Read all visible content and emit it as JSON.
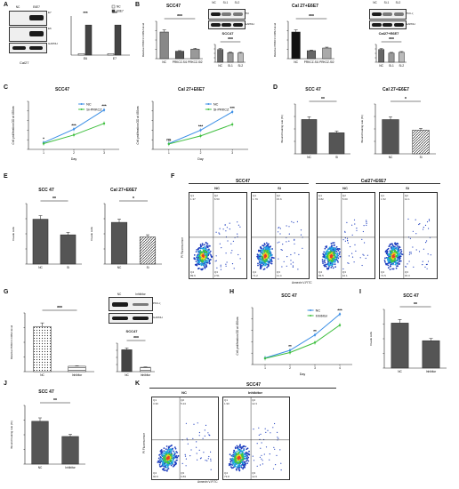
{
  "panel_letters": [
    "A",
    "B",
    "C",
    "D",
    "E",
    "F",
    "G",
    "H",
    "I",
    "J",
    "K"
  ],
  "A": {
    "lanes": [
      "NC",
      "E6E7"
    ],
    "rows": [
      "E7",
      "E6",
      "GAPDH"
    ],
    "cell_line": "Cal27",
    "chart_data": {
      "type": "bar",
      "categories": [
        "E6",
        "E7"
      ],
      "series": [
        {
          "name": "NC",
          "values": [
            0.05,
            0.05
          ]
        },
        {
          "name": "E6E7",
          "values": [
            1.0,
            1.0
          ]
        }
      ],
      "legend": [
        "NC",
        "E6E7"
      ],
      "sig": [
        "***",
        "***"
      ]
    }
  },
  "B": {
    "title1": "SCC47",
    "title2": "Cal 27+E6E7",
    "chart1": {
      "type": "bar",
      "categories": [
        "NC",
        "PRKCZ-Si1",
        "PRKCZ-Si2"
      ],
      "values": [
        1.0,
        0.28,
        0.36
      ],
      "ylabel": "Relative PRKCZ mRNA level",
      "ylim": [
        0,
        1.4
      ]
    },
    "chart2": {
      "type": "bar",
      "categories": [
        "NC",
        "PRKCZ-Si1",
        "PRKCZ-Si2"
      ],
      "values": [
        1.0,
        0.3,
        0.4
      ],
      "ylabel": "Relative PRKCZ mRNA level",
      "ylim": [
        0,
        1.4
      ]
    },
    "blot1": {
      "lanes": [
        "NC",
        "Si-1",
        "Si-2"
      ],
      "rows": [
        "PKI",
        "GAPDH"
      ],
      "cell": "SCC47"
    },
    "blot2": {
      "lanes": [
        "NC",
        "Si-1",
        "Si-2"
      ],
      "rows": [
        "PKC-ζ",
        "GAPDH"
      ],
      "cell": "Cal27+E6E7"
    },
    "small1": {
      "type": "bar",
      "categories": [
        "NC",
        "Si-1",
        "Si-2"
      ],
      "values": [
        1.0,
        0.75,
        0.72
      ]
    },
    "small2": {
      "type": "bar",
      "categories": [
        "NC",
        "Si-1",
        "Si-2"
      ],
      "values": [
        1.0,
        0.72,
        0.78
      ]
    },
    "sig": "***"
  },
  "C": {
    "title1": "SCC47",
    "title2": "Cal 27+E6E7",
    "chart1": {
      "type": "line",
      "x": [
        1,
        2,
        3
      ],
      "series": [
        {
          "name": "NC",
          "values": [
            0.35,
            1.05,
            2.05
          ]
        },
        {
          "name": "Si-PRKCZ",
          "values": [
            0.3,
            0.75,
            1.35
          ]
        }
      ],
      "xlabel": "Day",
      "ylabel": "Cell proliferation OD at 450nm"
    },
    "chart2": {
      "type": "line",
      "x": [
        1,
        2,
        3
      ],
      "series": [
        {
          "name": "NC",
          "values": [
            0.3,
            1.0,
            1.95
          ]
        },
        {
          "name": "Si-PRKCZ",
          "values": [
            0.28,
            0.7,
            1.3
          ]
        }
      ],
      "xlabel": "Day",
      "ylabel": "Cell proliferation OD at 450nm"
    },
    "legend": [
      "NC",
      "Si-PRKCZ"
    ],
    "sigs1": [
      "*",
      "***",
      "***"
    ],
    "sigs2": [
      "ns",
      "***",
      "***"
    ]
  },
  "D": {
    "title1": "SCC 47",
    "title2": "Cal 27+E6E7",
    "chart1": {
      "type": "bar",
      "categories": [
        "NC",
        "Si"
      ],
      "values": [
        62,
        38
      ],
      "ylabel": "Wound healing rate (%)"
    },
    "chart2": {
      "type": "bar",
      "categories": [
        "NC",
        "Si"
      ],
      "values": [
        55,
        38
      ],
      "ylabel": "Wound healing rate (%)"
    },
    "sig1": "**",
    "sig2": "*"
  },
  "E": {
    "title1": "SCC 47",
    "title2": "Cal 27+E6E7",
    "chart1": {
      "type": "bar",
      "categories": [
        "NC",
        "Si"
      ],
      "values": [
        230,
        150
      ],
      "ylabel": "Invade cells"
    },
    "chart2": {
      "type": "bar",
      "categories": [
        "NC",
        "Si"
      ],
      "values": [
        200,
        130
      ],
      "ylabel": "Invade cells"
    },
    "sig1": "**",
    "sig2": "*"
  },
  "F": {
    "title1": "SCC47",
    "title2": "Cal27+E6E7",
    "plots": [
      {
        "label": "NC",
        "q": [
          "1.37",
          "6.50",
          "89.6",
          "2.51"
        ]
      },
      {
        "label": "Si",
        "q": [
          "1.79",
          "15.6",
          "71.2",
          "11.4"
        ]
      },
      {
        "label": "NC",
        "q": [
          "0.82",
          "5.60",
          "83.5",
          "10.1"
        ]
      },
      {
        "label": "Si",
        "q": [
          "1.52",
          "12.1",
          "71.5",
          "15.3"
        ]
      }
    ],
    "xlabel": "Annexin V-FITC",
    "ylabel": "PI Fluorescence"
  },
  "G": {
    "chart": {
      "type": "bar",
      "categories": [
        "NC",
        "Inhibitor"
      ],
      "values": [
        1.0,
        0.12
      ],
      "ylabel": "Relative PRKCZ mRNA level"
    },
    "blot": {
      "lanes": [
        "NC",
        "Inhibitor"
      ],
      "rows": [
        "PKC-ζ",
        "GAPDH"
      ]
    },
    "small": {
      "type": "bar",
      "categories": [
        "NC",
        "Inhibitor"
      ],
      "values": [
        1.0,
        0.2
      ],
      "title": "SCC47"
    },
    "sig": "***"
  },
  "H": {
    "title": "SCC 47",
    "chart": {
      "type": "line",
      "x": [
        1,
        2,
        3,
        4
      ],
      "series": [
        {
          "name": "NC",
          "values": [
            0.3,
            0.65,
            1.35,
            2.3
          ]
        },
        {
          "name": "Inhibitor",
          "values": [
            0.28,
            0.55,
            1.0,
            1.8
          ]
        }
      ],
      "xlabel": "Day",
      "ylabel": "Cell proliferation OD at 450nm"
    },
    "legend": [
      "NC",
      "Inhibitor"
    ],
    "sigs": [
      "**",
      "**",
      "***"
    ]
  },
  "I": {
    "title": "SCC 47",
    "chart": {
      "type": "bar",
      "categories": [
        "NC",
        "Inhibitor"
      ],
      "values": [
        230,
        140
      ],
      "ylabel": "Invade cells"
    },
    "sig": "**"
  },
  "J": {
    "title": "SCC 47",
    "chart": {
      "type": "bar",
      "categories": [
        "NC",
        "Inhibitor"
      ],
      "values": [
        62,
        40
      ],
      "ylabel": "Wound healing rate (%)"
    },
    "sig": "**"
  },
  "K": {
    "title": "SCC47",
    "plots": [
      {
        "label": "NC",
        "q": [
          "3.30",
          "5.24",
          "90.6",
          "0.83"
        ]
      },
      {
        "label": "Inhibitor",
        "q": [
          "1.90",
          "12.3",
          "73.8",
          "12.6"
        ]
      }
    ],
    "xlabel": "Annexin V-FITC",
    "ylabel": "PI Fluorescence"
  },
  "colors": {
    "dark": "#3a3a3a",
    "mid": "#808080",
    "light": "#cfcfcf",
    "blue": "#3a8ee6",
    "green": "#3fbf3f"
  }
}
